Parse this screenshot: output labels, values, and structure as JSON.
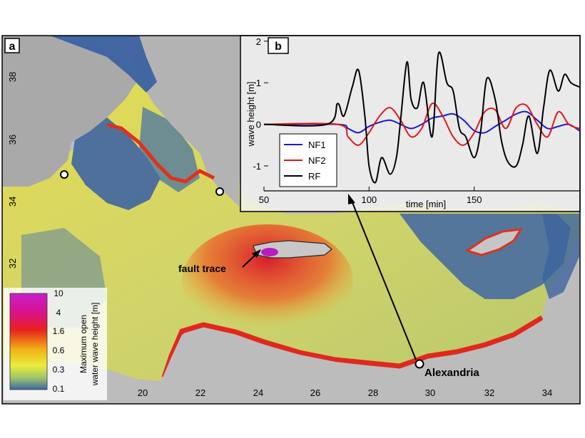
{
  "map": {
    "panel_label": "a",
    "lon_ticks": [
      "20",
      "22",
      "24",
      "26",
      "28",
      "30",
      "32",
      "34"
    ],
    "lat_ticks": [
      "38",
      "36",
      "34",
      "32"
    ],
    "annotations": {
      "fault_trace": "fault trace",
      "city": "Alexandria"
    },
    "colorbar": {
      "title_line1": "Maximum open",
      "title_line2": "water wave height [m]",
      "ticks": [
        "10",
        "4",
        "1.6",
        "0.6",
        "0.3",
        "0.1"
      ]
    },
    "colors": {
      "land": "#c2c2c2",
      "deep_low": "#3a62a0",
      "mid": "#e9e04a",
      "high": "#e02a20",
      "peak": "#b41cb4"
    }
  },
  "inset": {
    "panel_label": "b",
    "ylabel": "wave height [m]",
    "xlabel": "time [min]"
  },
  "chart_data": {
    "type": "line",
    "title": "",
    "xlabel": "time [min]",
    "ylabel": "wave height [m]",
    "xlim": [
      50,
      200
    ],
    "ylim": [
      -1.6,
      2.1
    ],
    "xticks": [
      50,
      100,
      150
    ],
    "yticks": [
      2,
      1,
      0,
      -1
    ],
    "legend_position": "lower-left",
    "series": [
      {
        "name": "NF1",
        "color": "#1a1ad0",
        "x": [
          50,
          85,
          90,
          95,
          100,
          105,
          110,
          115,
          120,
          125,
          130,
          135,
          140,
          145,
          150,
          155,
          160,
          165,
          170,
          175,
          180,
          185,
          190,
          195,
          200
        ],
        "y": [
          0,
          0,
          -0.1,
          -0.2,
          -0.05,
          0.05,
          0.1,
          0,
          -0.1,
          0,
          0.15,
          0.2,
          0.25,
          0.1,
          -0.15,
          -0.2,
          -0.05,
          0.1,
          0.25,
          0.3,
          0.1,
          -0.1,
          -0.05,
          0,
          -0.15
        ]
      },
      {
        "name": "NF2",
        "color": "#e01818",
        "x": [
          50,
          85,
          90,
          95,
          100,
          105,
          110,
          115,
          120,
          125,
          130,
          135,
          140,
          145,
          150,
          155,
          160,
          165,
          170,
          175,
          180,
          185,
          190,
          195,
          200
        ],
        "y": [
          0,
          0,
          -0.3,
          -0.5,
          -0.2,
          0.2,
          0.4,
          0.1,
          -0.3,
          -0.1,
          0.5,
          0.2,
          -0.3,
          -0.5,
          -0.2,
          0.3,
          0.35,
          -0.1,
          0.4,
          0.45,
          0,
          -0.3,
          0.3,
          0,
          -0.1
        ]
      },
      {
        "name": "RF",
        "color": "#000000",
        "x": [
          50,
          80,
          85,
          88,
          92,
          95,
          98,
          100,
          103,
          106,
          110,
          113,
          115,
          118,
          120,
          123,
          126,
          130,
          133,
          137,
          140,
          143,
          146,
          150,
          153,
          156,
          160,
          163,
          166,
          170,
          173,
          176,
          180,
          183,
          186,
          190,
          193,
          196,
          200
        ],
        "y": [
          0,
          0,
          0.5,
          0.2,
          0.9,
          1.3,
          0.2,
          -1.0,
          -1.4,
          -0.8,
          -1.2,
          -0.8,
          0.1,
          1.5,
          0.6,
          0.4,
          1.0,
          -0.3,
          1.7,
          1.0,
          0.8,
          -0.1,
          -0.3,
          -0.8,
          -0.2,
          1.1,
          0.6,
          -0.4,
          -0.9,
          -1.0,
          -0.5,
          0.2,
          -0.7,
          0.4,
          1.3,
          0.8,
          1.2,
          1.0,
          0.9
        ]
      }
    ]
  }
}
